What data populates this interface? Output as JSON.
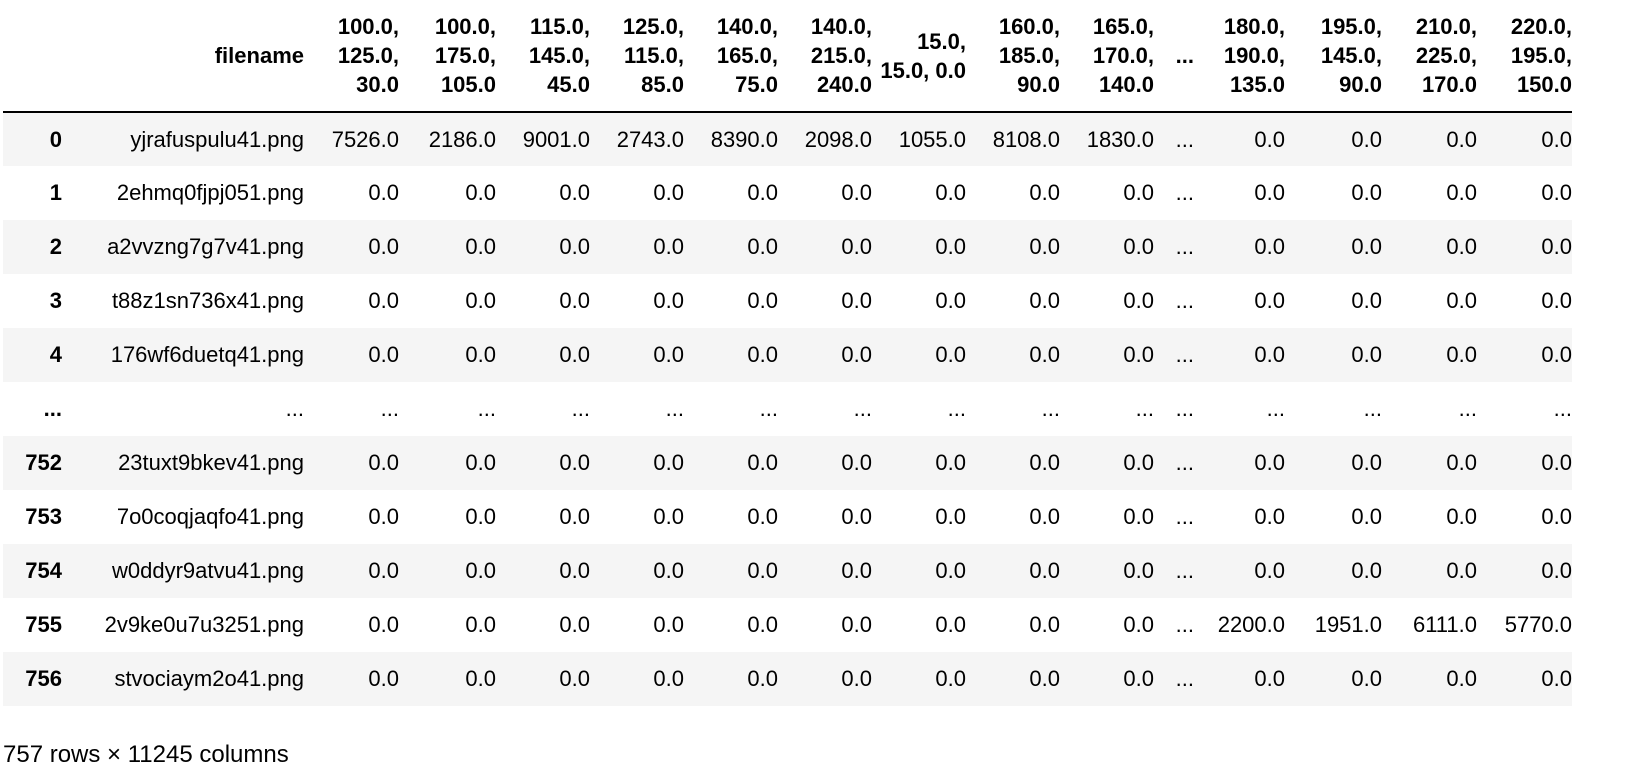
{
  "table": {
    "index_header": "",
    "filename_header": "filename",
    "columns": [
      "100.0, 125.0, 30.0",
      "100.0, 175.0, 105.0",
      "115.0, 145.0, 45.0",
      "125.0, 115.0, 85.0",
      "140.0, 165.0, 75.0",
      "140.0, 215.0, 240.0",
      "15.0, 15.0, 0.0",
      "160.0, 185.0, 90.0",
      "165.0, 170.0, 140.0",
      "...",
      "180.0, 190.0, 135.0",
      "195.0, 145.0, 90.0",
      "210.0, 225.0, 170.0",
      "220.0, 195.0, 150.0"
    ],
    "rows": [
      {
        "index": "0",
        "filename": "yjrafuspulu41.png",
        "values": [
          "7526.0",
          "2186.0",
          "9001.0",
          "2743.0",
          "8390.0",
          "2098.0",
          "1055.0",
          "8108.0",
          "1830.0",
          "...",
          "0.0",
          "0.0",
          "0.0",
          "0.0"
        ]
      },
      {
        "index": "1",
        "filename": "2ehmq0fjpj051.png",
        "values": [
          "0.0",
          "0.0",
          "0.0",
          "0.0",
          "0.0",
          "0.0",
          "0.0",
          "0.0",
          "0.0",
          "...",
          "0.0",
          "0.0",
          "0.0",
          "0.0"
        ]
      },
      {
        "index": "2",
        "filename": "a2vvzng7g7v41.png",
        "values": [
          "0.0",
          "0.0",
          "0.0",
          "0.0",
          "0.0",
          "0.0",
          "0.0",
          "0.0",
          "0.0",
          "...",
          "0.0",
          "0.0",
          "0.0",
          "0.0"
        ]
      },
      {
        "index": "3",
        "filename": "t88z1sn736x41.png",
        "values": [
          "0.0",
          "0.0",
          "0.0",
          "0.0",
          "0.0",
          "0.0",
          "0.0",
          "0.0",
          "0.0",
          "...",
          "0.0",
          "0.0",
          "0.0",
          "0.0"
        ]
      },
      {
        "index": "4",
        "filename": "176wf6duetq41.png",
        "values": [
          "0.0",
          "0.0",
          "0.0",
          "0.0",
          "0.0",
          "0.0",
          "0.0",
          "0.0",
          "0.0",
          "...",
          "0.0",
          "0.0",
          "0.0",
          "0.0"
        ]
      },
      {
        "index": "...",
        "filename": "...",
        "values": [
          "...",
          "...",
          "...",
          "...",
          "...",
          "...",
          "...",
          "...",
          "...",
          "...",
          "...",
          "...",
          "...",
          "..."
        ]
      },
      {
        "index": "752",
        "filename": "23tuxt9bkev41.png",
        "values": [
          "0.0",
          "0.0",
          "0.0",
          "0.0",
          "0.0",
          "0.0",
          "0.0",
          "0.0",
          "0.0",
          "...",
          "0.0",
          "0.0",
          "0.0",
          "0.0"
        ]
      },
      {
        "index": "753",
        "filename": "7o0coqjaqfo41.png",
        "values": [
          "0.0",
          "0.0",
          "0.0",
          "0.0",
          "0.0",
          "0.0",
          "0.0",
          "0.0",
          "0.0",
          "...",
          "0.0",
          "0.0",
          "0.0",
          "0.0"
        ]
      },
      {
        "index": "754",
        "filename": "w0ddyr9atvu41.png",
        "values": [
          "0.0",
          "0.0",
          "0.0",
          "0.0",
          "0.0",
          "0.0",
          "0.0",
          "0.0",
          "0.0",
          "...",
          "0.0",
          "0.0",
          "0.0",
          "0.0"
        ]
      },
      {
        "index": "755",
        "filename": "2v9ke0u7u3251.png",
        "values": [
          "0.0",
          "0.0",
          "0.0",
          "0.0",
          "0.0",
          "0.0",
          "0.0",
          "0.0",
          "0.0",
          "...",
          "2200.0",
          "1951.0",
          "6111.0",
          "5770.0"
        ]
      },
      {
        "index": "756",
        "filename": "stvociaym2o41.png",
        "values": [
          "0.0",
          "0.0",
          "0.0",
          "0.0",
          "0.0",
          "0.0",
          "0.0",
          "0.0",
          "0.0",
          "...",
          "0.0",
          "0.0",
          "0.0",
          "0.0"
        ]
      }
    ]
  },
  "shape_text": "757 rows × 11245 columns"
}
